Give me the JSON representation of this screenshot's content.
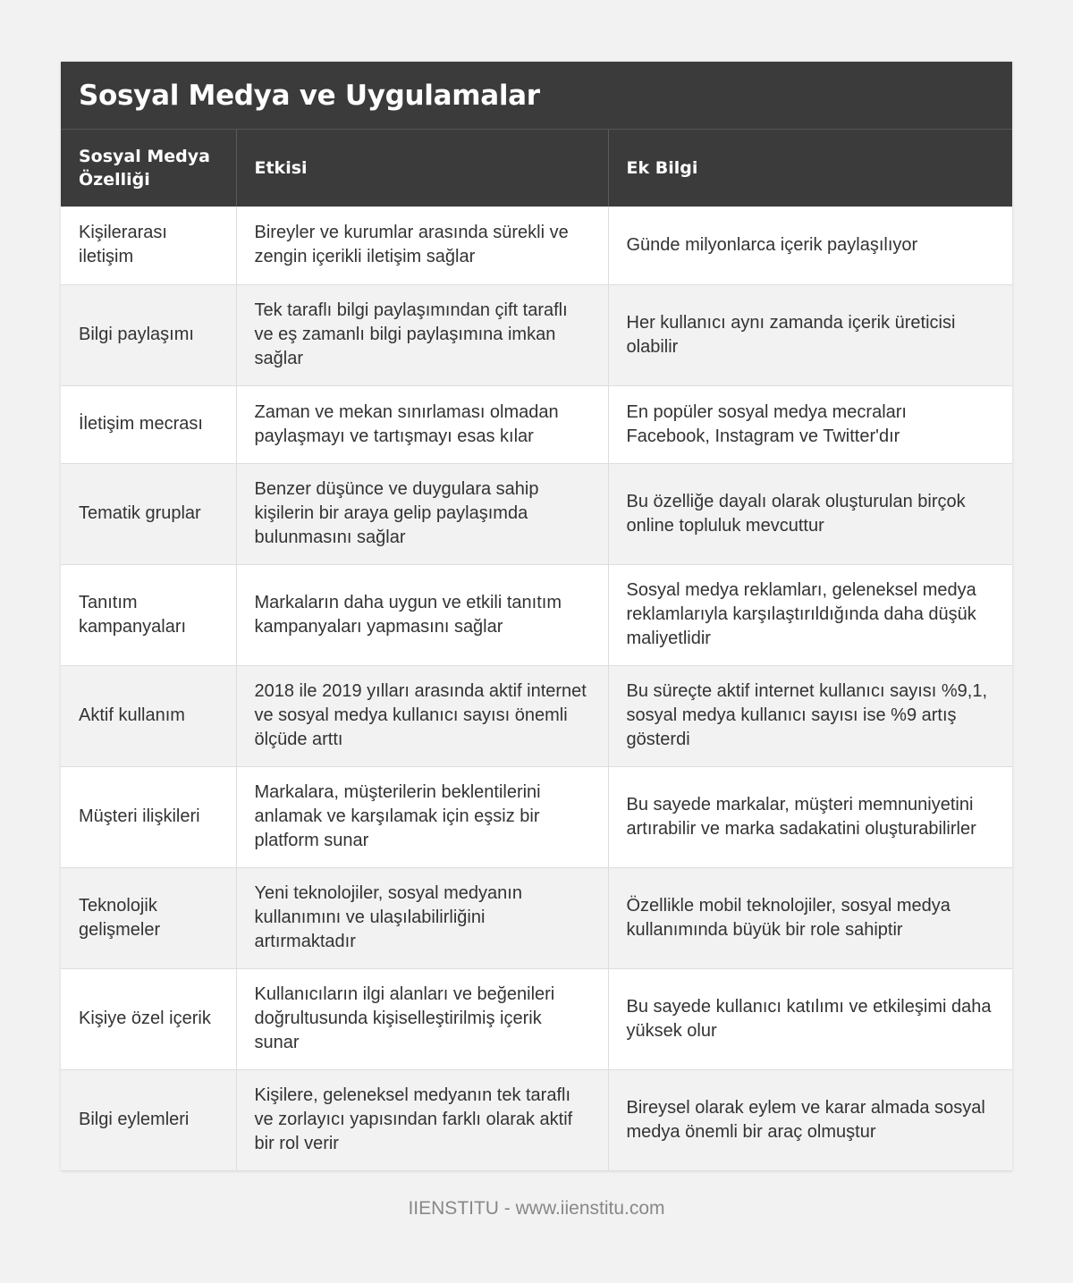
{
  "title": "Sosyal Medya ve Uygulamalar",
  "headers": [
    "Sosyal Medya Özelliği",
    "Etkisi",
    "Ek Bilgi"
  ],
  "rows": [
    [
      "Kişilerarası iletişim",
      "Bireyler ve kurumlar arasında sürekli ve zengin içerikli iletişim sağlar",
      "Günde milyonlarca içerik paylaşılıyor"
    ],
    [
      "Bilgi paylaşımı",
      "Tek taraflı bilgi paylaşımından çift taraflı ve eş zamanlı bilgi paylaşımına imkan sağlar",
      "Her kullanıcı aynı zamanda içerik üreticisi olabilir"
    ],
    [
      "İletişim mecrası",
      "Zaman ve mekan sınırlaması olmadan paylaşmayı ve tartışmayı esas kılar",
      "En popüler sosyal medya mecraları Facebook, Instagram ve Twitter'dır"
    ],
    [
      "Tematik gruplar",
      "Benzer düşünce ve duygulara sahip kişilerin bir araya gelip paylaşımda bulunmasını sağlar",
      "Bu özelliğe dayalı olarak oluşturulan birçok online topluluk mevcuttur"
    ],
    [
      "Tanıtım kampanyaları",
      "Markaların daha uygun ve etkili tanıtım kampanyaları yapmasını sağlar",
      "Sosyal medya reklamları, geleneksel medya reklamlarıyla karşılaştırıldığında daha düşük maliyetlidir"
    ],
    [
      "Aktif kullanım",
      "2018 ile 2019 yılları arasında aktif internet ve sosyal medya kullanıcı sayısı önemli ölçüde arttı",
      "Bu süreçte aktif internet kullanıcı sayısı %9,1, sosyal medya kullanıcı sayısı ise %9 artış gösterdi"
    ],
    [
      "Müşteri ilişkileri",
      "Markalara, müşterilerin beklentilerini anlamak ve karşılamak için eşsiz bir platform sunar",
      "Bu sayede markalar, müşteri memnuniyetini artırabilir ve marka sadakatini oluşturabilirler"
    ],
    [
      "Teknolojik gelişmeler",
      "Yeni teknolojiler, sosyal medyanın kullanımını ve ulaşılabilirliğini artırmaktadır",
      "Özellikle mobil teknolojiler, sosyal medya kullanımında büyük bir role sahiptir"
    ],
    [
      "Kişiye özel içerik",
      "Kullanıcıların ilgi alanları ve beğenileri doğrultusunda kişiselleştirilmiş içerik sunar",
      "Bu sayede kullanıcı katılımı ve etkileşimi daha yüksek olur"
    ],
    [
      "Bilgi eylemleri",
      "Kişilere, geleneksel medyanın tek taraflı ve zorlayıcı yapısından farklı olarak aktif bir rol verir",
      "Bireysel olarak eylem ve karar almada sosyal medya önemli bir araç olmuştur"
    ]
  ],
  "footer": "IIENSTITU - www.iienstitu.com"
}
